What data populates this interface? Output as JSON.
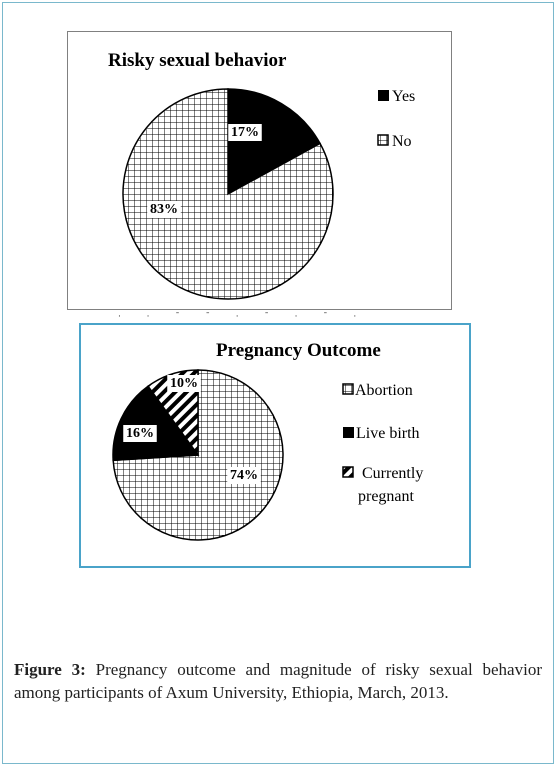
{
  "chart_data": [
    {
      "type": "pie",
      "title": "Risky sexual behavior",
      "categories": [
        "Yes",
        "No"
      ],
      "values": [
        17,
        83
      ],
      "labels": [
        "17%",
        "83%"
      ],
      "legend": [
        {
          "label": "Yes",
          "fill": "solid-black"
        },
        {
          "label": "No",
          "fill": "grid"
        }
      ],
      "legend_position": "right"
    },
    {
      "type": "pie",
      "title": "Pregnancy Outcome",
      "categories": [
        "Abortion",
        "Live birth",
        "Currently pregnant"
      ],
      "values": [
        74,
        16,
        10
      ],
      "labels": [
        "74%",
        "16%",
        "10%"
      ],
      "legend": [
        {
          "label": "Abortion",
          "fill": "grid"
        },
        {
          "label": "Live birth",
          "fill": "solid-black"
        },
        {
          "label_lines": [
            "Currently",
            "pregnant"
          ],
          "fill": "diagonal-stripes"
        }
      ],
      "legend_position": "right"
    }
  ],
  "caption": {
    "label": "Figure 3:",
    "text": " Pregnancy outcome and magnitude of risky sexual behavior among participants of Axum University, Ethiopia, March, 2013."
  },
  "colors": {
    "frame": "#7ab8cc",
    "chart2_border": "#4aa3c9",
    "ink": "#000000"
  }
}
